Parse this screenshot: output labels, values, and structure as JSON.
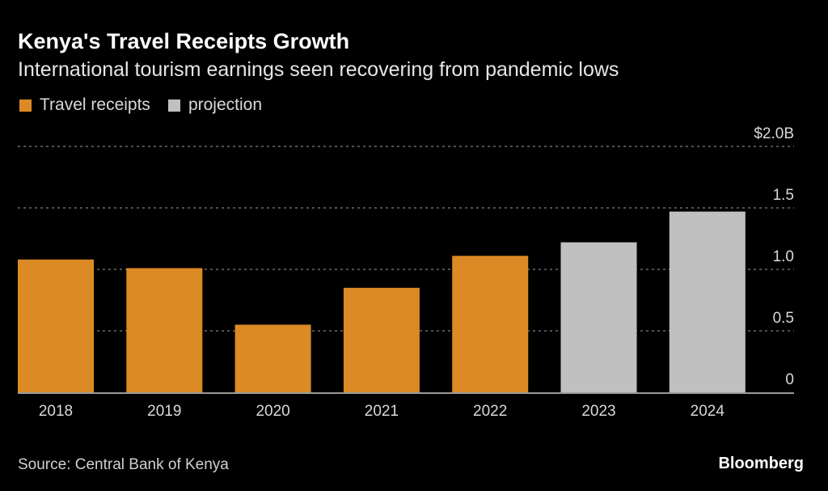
{
  "chart_data": {
    "type": "bar",
    "title": "Kenya's Travel Receipts Growth",
    "subtitle": "International tourism earnings seen recovering from pandemic lows",
    "categories": [
      "2018",
      "2019",
      "2020",
      "2021",
      "2022",
      "2023",
      "2024"
    ],
    "values": [
      1.08,
      1.01,
      0.55,
      0.85,
      1.11,
      1.22,
      1.47
    ],
    "series_kind": [
      "actual",
      "actual",
      "actual",
      "actual",
      "actual",
      "projection",
      "projection"
    ],
    "legend": [
      {
        "label": "Travel receipts",
        "color": "#dc8a25"
      },
      {
        "label": "projection",
        "color": "#c0c0c0"
      }
    ],
    "legend_position": "top-left",
    "xlabel": "",
    "ylabel": "",
    "ylim": [
      0,
      2.0
    ],
    "yticks": [
      0,
      0.5,
      1.0,
      1.5,
      2.0
    ],
    "ytick_labels": [
      "0",
      "0.5",
      "1.0",
      "1.5",
      "$2.0B"
    ],
    "y_axis_side": "right",
    "grid": true,
    "unit": "USD billions"
  },
  "source": "Source: Central Bank of Kenya",
  "brand": "Bloomberg",
  "colors": {
    "actual": "#dc8a25",
    "projection": "#c0c0c0",
    "grid": "#6b6b6b",
    "axis": "#9a9a9a",
    "tick_text": "#d9d9d9"
  }
}
